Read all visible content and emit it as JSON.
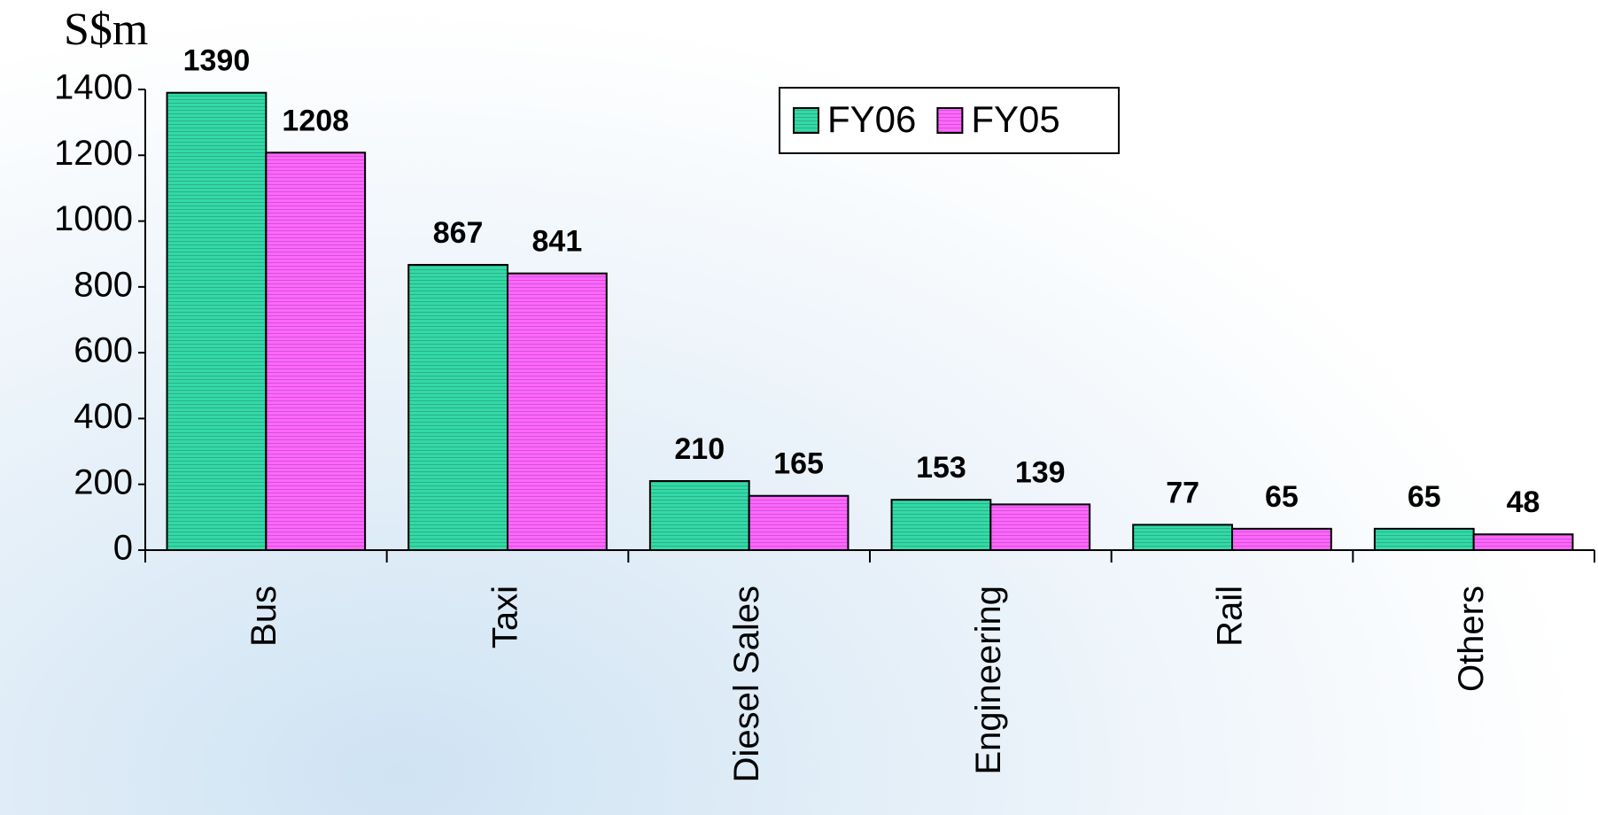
{
  "chart_data": {
    "type": "bar",
    "y_label": "S$m",
    "categories": [
      "Bus",
      "Taxi",
      "Diesel Sales",
      "Engineering",
      "Rail",
      "Others"
    ],
    "series": [
      {
        "name": "FY06",
        "color": "#33d9a6",
        "values": [
          1390,
          867,
          210,
          153,
          77,
          65
        ]
      },
      {
        "name": "FY05",
        "color": "#ff66ff",
        "values": [
          1208,
          841,
          165,
          139,
          65,
          48
        ]
      }
    ],
    "ylim": [
      0,
      1400
    ],
    "yticks": [
      0,
      200,
      400,
      600,
      800,
      1000,
      1200,
      1400
    ],
    "grid": false,
    "legend": "top"
  }
}
